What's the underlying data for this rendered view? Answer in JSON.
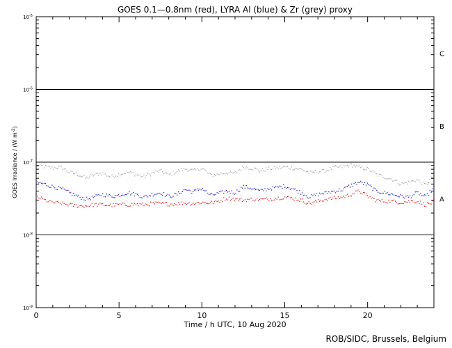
{
  "chart_data": {
    "type": "scatter",
    "title": "GOES 0.1—0.8nm (red), LYRA Al (blue) & Zr (grey) proxy",
    "xlabel": "Time / h UTC, 10 Aug 2020",
    "ylabel_main": "GOES Irradiance / (W m",
    "ylabel_exp": "-2",
    "ylabel_close": ")",
    "xlim": [
      0,
      24
    ],
    "ylim_log": [
      -9,
      -5
    ],
    "y_scale": "log",
    "x_ticks": [
      {
        "value": 0,
        "label": "0"
      },
      {
        "value": 5,
        "label": "5"
      },
      {
        "value": 10,
        "label": "10"
      },
      {
        "value": 15,
        "label": "15"
      },
      {
        "value": 20,
        "label": "20"
      }
    ],
    "y_ticks": [
      {
        "exp": -9,
        "label": "10",
        "sup": "-9"
      },
      {
        "exp": -8,
        "label": "10",
        "sup": "-8"
      },
      {
        "exp": -7,
        "label": "10",
        "sup": "-7"
      },
      {
        "exp": -6,
        "label": "10",
        "sup": "-6"
      },
      {
        "exp": -5,
        "label": "10",
        "sup": "-5"
      }
    ],
    "flare_classes": [
      {
        "label": "A",
        "exp": -7.5
      },
      {
        "label": "B",
        "exp": -6.5
      },
      {
        "label": "C",
        "exp": -5.5
      }
    ],
    "class_lines_exp": [
      -8,
      -7,
      -6
    ],
    "series": [
      {
        "color": "#999999",
        "x": [
          0,
          0.5,
          1,
          1.5,
          2,
          2.5,
          3,
          3.5,
          4,
          4.5,
          5,
          5.5,
          6,
          6.5,
          7,
          7.5,
          8,
          8.5,
          9,
          9.5,
          10,
          10.5,
          11,
          11.5,
          12,
          12.5,
          13,
          13.5,
          14,
          14.5,
          15,
          15.5,
          16,
          16.5,
          17,
          17.5,
          18,
          18.5,
          19,
          19.5,
          20,
          20.5,
          21,
          21.5,
          22,
          22.5,
          23,
          23.5,
          24
        ],
        "y": [
          9e-08,
          8.7e-08,
          8.3e-08,
          8.5e-08,
          7.3e-08,
          6.8e-08,
          6e-08,
          6.7e-08,
          7e-08,
          6.3e-08,
          6.8e-08,
          7.3e-08,
          6.8e-08,
          6.3e-08,
          7e-08,
          7.6e-08,
          6.7e-08,
          7.5e-08,
          8.1e-08,
          7.6e-08,
          8.3e-08,
          6.6e-08,
          6.8e-08,
          7.2e-08,
          7e-08,
          8.6e-08,
          8.3e-08,
          7.6e-08,
          8.1e-08,
          8.3e-08,
          8.6e-08,
          8.3e-08,
          8e-08,
          7.1e-08,
          7.4e-08,
          7.6e-08,
          8.5e-08,
          8.6e-08,
          9.2e-08,
          8.5e-08,
          8.1e-08,
          6.8e-08,
          6.3e-08,
          5.8e-08,
          5e-08,
          5.3e-08,
          5.7e-08,
          4.8e-08,
          6.5e-08
        ]
      },
      {
        "color": "#0000cc",
        "x": [
          0,
          0.5,
          1,
          1.5,
          2,
          2.5,
          3,
          3.5,
          4,
          4.5,
          5,
          5.5,
          6,
          6.5,
          7,
          7.5,
          8,
          8.5,
          9,
          9.5,
          10,
          10.5,
          11,
          11.5,
          12,
          12.5,
          13,
          13.5,
          14,
          14.5,
          15,
          15.5,
          16,
          16.5,
          17,
          17.5,
          18,
          18.5,
          19,
          19.5,
          20,
          20.5,
          21,
          21.5,
          22,
          22.5,
          23,
          23.5,
          24
        ],
        "y": [
          5.3e-08,
          5e-08,
          4.6e-08,
          4.3e-08,
          3.8e-08,
          3.4e-08,
          3.1e-08,
          3.3e-08,
          3.6e-08,
          3.4e-08,
          3.5e-08,
          3.8e-08,
          3.6e-08,
          3.3e-08,
          3.6e-08,
          3.8e-08,
          3.4e-08,
          3.6e-08,
          4.2e-08,
          3.9e-08,
          4.4e-08,
          3.5e-08,
          3.7e-08,
          4e-08,
          3.8e-08,
          4.6e-08,
          4.4e-08,
          4e-08,
          4.3e-08,
          4.5e-08,
          4.7e-08,
          4.3e-08,
          3.8e-08,
          3.3e-08,
          3.6e-08,
          3.8e-08,
          4e-08,
          4.2e-08,
          4.8e-08,
          5.3e-08,
          4.9e-08,
          4e-08,
          3.8e-08,
          3.6e-08,
          3.4e-08,
          3.3e-08,
          3.8e-08,
          3.3e-08,
          4.4e-08
        ]
      },
      {
        "color": "#dd0000",
        "x": [
          0,
          0.5,
          1,
          1.5,
          2,
          2.5,
          3,
          3.5,
          4,
          4.5,
          5,
          5.5,
          6,
          6.5,
          7,
          7.5,
          8,
          8.5,
          9,
          9.5,
          10,
          10.5,
          11,
          11.5,
          12,
          12.5,
          13,
          13.5,
          14,
          14.5,
          15,
          15.5,
          16,
          16.5,
          17,
          17.5,
          18,
          18.5,
          19,
          19.5,
          20,
          20.5,
          21,
          21.5,
          22,
          22.5,
          23,
          23.5,
          24
        ],
        "y": [
          3.4e-08,
          3e-08,
          2.8e-08,
          2.7e-08,
          2.6e-08,
          2.5e-08,
          2.5e-08,
          2.6e-08,
          2.6e-08,
          2.55e-08,
          2.6e-08,
          2.6e-08,
          2.65e-08,
          2.6e-08,
          2.7e-08,
          2.7e-08,
          2.65e-08,
          2.7e-08,
          2.75e-08,
          2.7e-08,
          2.8e-08,
          2.75e-08,
          2.9e-08,
          3.2e-08,
          3.1e-08,
          3e-08,
          3.1e-08,
          3.05e-08,
          3.1e-08,
          3.2e-08,
          3.3e-08,
          3.2e-08,
          3e-08,
          2.7e-08,
          2.9e-08,
          3.1e-08,
          3.2e-08,
          3.3e-08,
          3.6e-08,
          4e-08,
          3.4e-08,
          3e-08,
          2.9e-08,
          2.9e-08,
          2.8e-08,
          2.9e-08,
          2.9e-08,
          2.6e-08,
          2.8e-08
        ]
      }
    ],
    "credit": "ROB/SIDC, Brussels, Belgium"
  }
}
